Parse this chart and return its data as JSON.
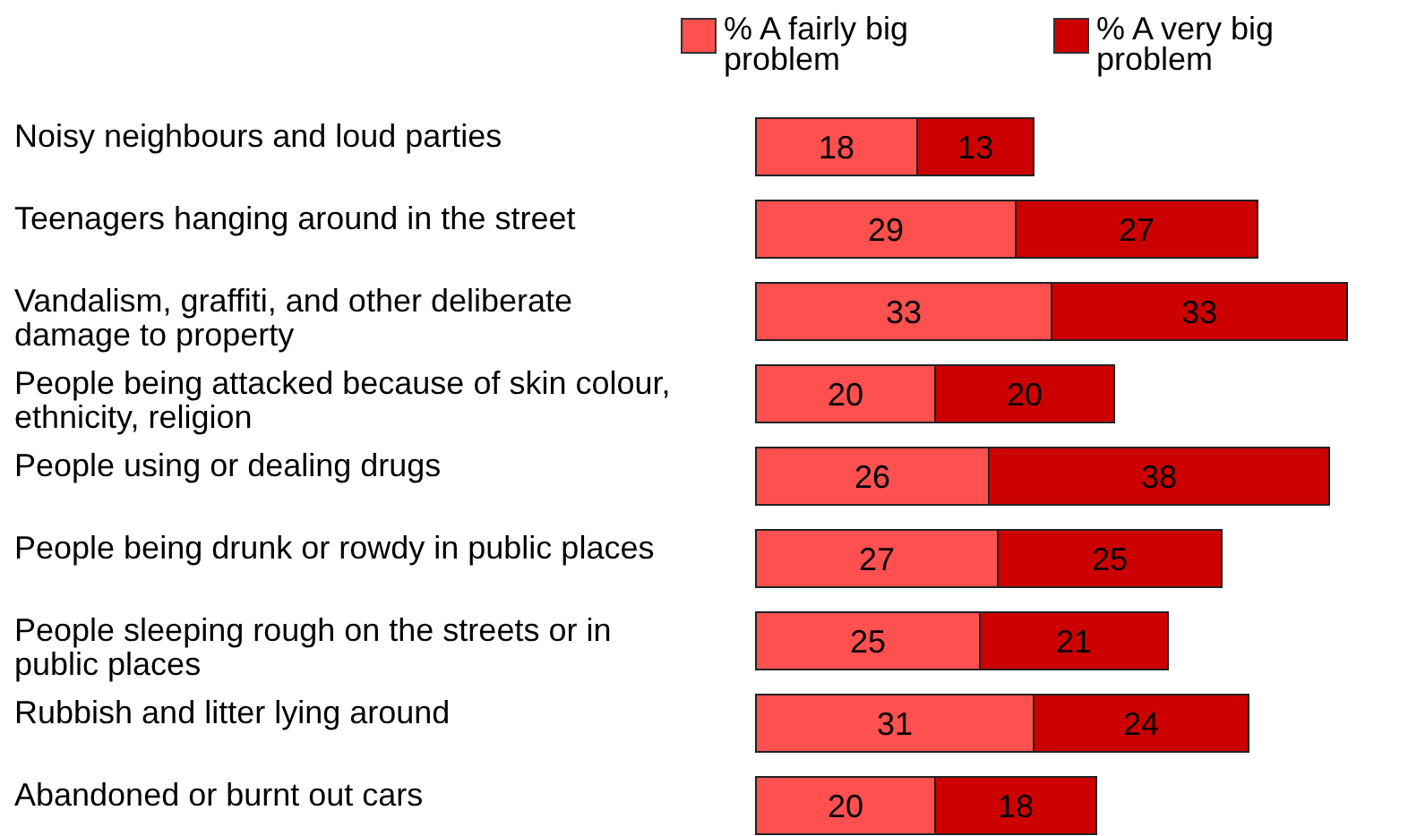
{
  "chart_data": {
    "type": "bar",
    "orientation": "horizontal",
    "stacked": true,
    "data_labels": true,
    "legend": "top",
    "grid": false,
    "categories": [
      "Noisy neighbours and loud parties",
      "Teenagers hanging around in the street",
      "Vandalism, graffiti, and other deliberate damage to property",
      "People being attacked because of skin colour, ethnicity, religion",
      "People using or dealing drugs",
      "People being drunk or rowdy in public places",
      "People sleeping rough on the streets or in public places",
      "Rubbish and litter lying around",
      "Abandoned or burnt out cars"
    ],
    "series": [
      {
        "name": "% A fairly big problem",
        "color": "#ff5050",
        "values": [
          18,
          29,
          33,
          20,
          26,
          27,
          25,
          31,
          20
        ]
      },
      {
        "name": "% A very big problem",
        "color": "#cc0000",
        "values": [
          13,
          27,
          33,
          20,
          38,
          25,
          21,
          24,
          18
        ]
      }
    ]
  }
}
